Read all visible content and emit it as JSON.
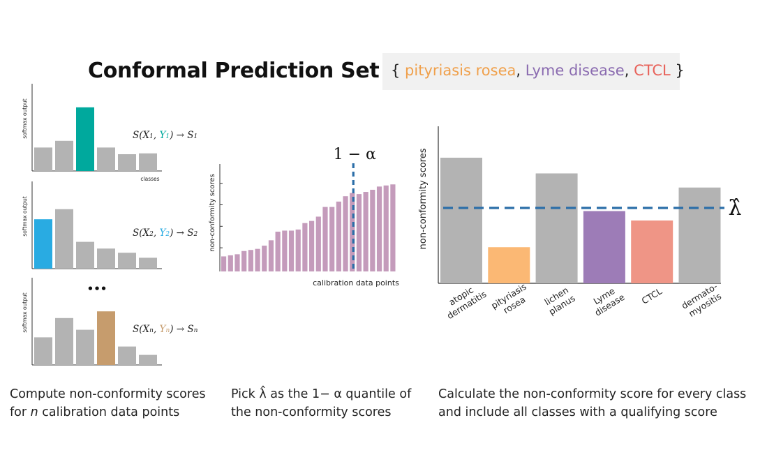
{
  "header": {
    "title": "Conformal Prediction Set",
    "set_open": "{ ",
    "set_close": " }",
    "set_sep": ", ",
    "set_items": [
      {
        "label": "pityriasis rosea",
        "color": "#f0a04b"
      },
      {
        "label": "Lyme disease",
        "color": "#8a6bb0"
      },
      {
        "label": "CTCL",
        "color": "#e8625a"
      }
    ]
  },
  "left_panel": {
    "ylabel": "softmax output",
    "xlabel": "classes",
    "ellipsis": "•••",
    "charts": [
      {
        "values": [
          0.28,
          0.36,
          0.76,
          0.28,
          0.2,
          0.21
        ],
        "highlight": 2,
        "color": "#00a99d",
        "formula": {
          "pre": "S(X",
          "sub1": "1",
          "mid": ", ",
          "y": "Y",
          "sub2": "1",
          "post": ") → S",
          "sub3": "1"
        }
      },
      {
        "values": [
          0.59,
          0.71,
          0.32,
          0.24,
          0.19,
          0.13
        ],
        "highlight": 0,
        "color": "#29abe2",
        "formula": {
          "pre": "S(X",
          "sub1": "2",
          "mid": ", ",
          "y": "Y",
          "sub2": "2",
          "post": ") → S",
          "sub3": "2"
        }
      },
      {
        "values": [
          0.33,
          0.56,
          0.42,
          0.64,
          0.22,
          0.12
        ],
        "highlight": 3,
        "color": "#c69c6d",
        "formula": {
          "pre": "S(X",
          "sub1": "n",
          "mid": ", ",
          "y": "Y",
          "sub2": "n",
          "post": ") → S",
          "sub3": "n"
        }
      }
    ],
    "caption": {
      "line1": "Compute non-conformity scores",
      "line2_pre": "for ",
      "line2_italic": "n",
      "line2_post": " calibration data points"
    }
  },
  "middle_panel": {
    "ylabel": "non-conformity scores",
    "xlabel": "calibration data points",
    "quantile_label": "1 − α",
    "bar_color": "#c49bbb",
    "line_color": "#2b6ea8",
    "values": [
      0.14,
      0.15,
      0.16,
      0.19,
      0.2,
      0.21,
      0.24,
      0.29,
      0.37,
      0.38,
      0.38,
      0.39,
      0.45,
      0.47,
      0.51,
      0.6,
      0.6,
      0.65,
      0.7,
      0.73,
      0.72,
      0.74,
      0.76,
      0.79,
      0.8,
      0.81
    ],
    "quantile_fraction": 0.765,
    "caption": {
      "line1_pre": "Pick ",
      "lambda_hat": "λ̂",
      "line1_post": " as the 1− α quantile of",
      "line2": "the non-conformity scores"
    }
  },
  "right_panel": {
    "ylabel": "non-conformity scores",
    "threshold_label": "λ̂",
    "threshold_value": 0.48,
    "line_color": "#2b6ea8",
    "classes": [
      {
        "label1": "atopic",
        "label2": "dermatitis",
        "value": 0.8,
        "color": "#b3b3b3"
      },
      {
        "label1": "pityriasis",
        "label2": "rosea",
        "value": 0.23,
        "color": "#fbb874"
      },
      {
        "label1": "lichen",
        "label2": "planus",
        "value": 0.7,
        "color": "#b3b3b3"
      },
      {
        "label1": "Lyme",
        "label2": "disease",
        "value": 0.46,
        "color": "#9d7cb7"
      },
      {
        "label1": "CTCL",
        "label2": "",
        "value": 0.4,
        "color": "#ef9586"
      },
      {
        "label1": "dermato-",
        "label2": "myositis",
        "value": 0.61,
        "color": "#b3b3b3"
      }
    ],
    "caption": {
      "line1": "Calculate the non-conformity score for every class",
      "line2": "and include all classes with a qualifying score"
    }
  },
  "colors": {
    "gray_bar": "#b3b3b3",
    "axis": "#333333"
  }
}
